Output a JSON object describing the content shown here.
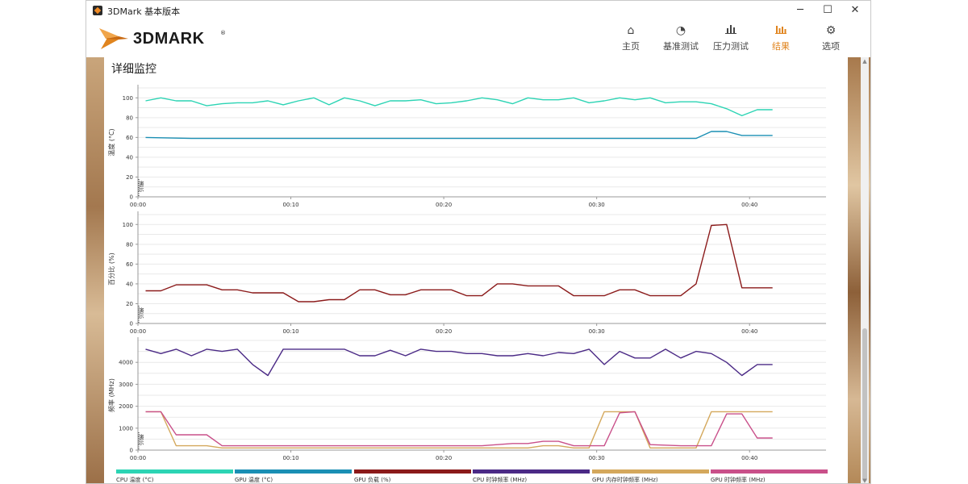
{
  "window": {
    "title": "3DMark 基本版本",
    "controls": {
      "minimize": "─",
      "maximize": "☐",
      "close": "✕"
    }
  },
  "header": {
    "logo_text": "3DMARK",
    "logo_mark": "®",
    "nav": [
      {
        "label": "主页",
        "icon": "home-icon",
        "glyph": "⌂",
        "active": false
      },
      {
        "label": "基准测试",
        "icon": "gauge-icon",
        "glyph": "◔",
        "active": false
      },
      {
        "label": "压力测试",
        "icon": "bar-chart-icon",
        "glyph": "▮",
        "active": false
      },
      {
        "label": "结果",
        "icon": "results-icon",
        "glyph": "▮",
        "active": true
      },
      {
        "label": "选项",
        "icon": "gear-icon",
        "glyph": "⚙",
        "active": false
      }
    ]
  },
  "monitor": {
    "title": "详细监控",
    "marker_label": "演示"
  },
  "colors": {
    "cpu_temp": "#2cd4b4",
    "gpu_temp": "#1a8fb4",
    "gpu_load": "#8b1a1a",
    "cpu_clock": "#4b2a86",
    "gpu_mem_clock": "#d4a85c",
    "gpu_clock": "#c9508a",
    "accent": "#e0841e"
  },
  "chart_data": [
    {
      "type": "line",
      "ylabel": "温度 (°C)",
      "ylim": [
        0,
        110
      ],
      "yticks": [
        0,
        20,
        40,
        60,
        80,
        100
      ],
      "xlim": [
        0,
        45
      ],
      "xticks": [
        "00:00",
        "00:10",
        "00:20",
        "00:30",
        "00:40"
      ],
      "grid": true,
      "series": [
        {
          "name": "CPU 温度 (°C)",
          "color": "#2cd4b4",
          "x": [
            0.5,
            1.5,
            2.5,
            3.5,
            4.5,
            5.5,
            6.5,
            7.5,
            8.5,
            9.5,
            10.5,
            11.5,
            12.5,
            13.5,
            14.5,
            15.5,
            16.5,
            17.5,
            18.5,
            19.5,
            20.5,
            21.5,
            22.5,
            23.5,
            24.5,
            25.5,
            26.5,
            27.5,
            28.5,
            29.5,
            30.5,
            31.5,
            32.5,
            33.5,
            34.5,
            35.5,
            36.5,
            37.5,
            38.5,
            39.5,
            40.5,
            41.5
          ],
          "y": [
            97,
            100,
            97,
            97,
            92,
            94,
            95,
            95,
            97,
            93,
            97,
            100,
            93,
            100,
            97,
            92,
            97,
            97,
            98,
            94,
            95,
            97,
            100,
            98,
            94,
            100,
            98,
            98,
            100,
            95,
            97,
            100,
            98,
            100,
            95,
            96,
            96,
            94,
            89,
            82,
            88,
            88
          ]
        },
        {
          "name": "GPU 温度 (°C)",
          "color": "#1a8fb4",
          "x": [
            0.5,
            3.5,
            5.5,
            9.5,
            14.5,
            19.5,
            24.5,
            29.5,
            30.5,
            33.5,
            36.5,
            37.5,
            38.5,
            39.5,
            41.5
          ],
          "y": [
            60,
            59,
            59,
            59,
            59,
            59,
            59,
            59,
            59,
            59,
            59,
            66,
            66,
            62,
            62
          ]
        }
      ]
    },
    {
      "type": "line",
      "ylabel": "百分比 (%)",
      "ylim": [
        0,
        110
      ],
      "yticks": [
        0,
        20,
        40,
        60,
        80,
        100
      ],
      "xlim": [
        0,
        45
      ],
      "xticks": [
        "00:00",
        "00:10",
        "00:20",
        "00:30",
        "00:40"
      ],
      "grid": true,
      "series": [
        {
          "name": "GPU 负载 (%)",
          "color": "#8b1a1a",
          "x": [
            0.5,
            1.5,
            2.5,
            3.5,
            4.5,
            5.5,
            6.5,
            7.5,
            8.5,
            9.5,
            10.5,
            11.5,
            12.5,
            13.5,
            14.5,
            15.5,
            16.5,
            17.5,
            18.5,
            19.5,
            20.5,
            21.5,
            22.5,
            23.5,
            24.5,
            25.5,
            26.5,
            27.5,
            28.5,
            29.5,
            30.5,
            31.5,
            32.5,
            33.5,
            34.5,
            35.5,
            36.5,
            37.5,
            38.5,
            39.5,
            40.5,
            41.5
          ],
          "y": [
            33,
            33,
            39,
            39,
            39,
            34,
            34,
            31,
            31,
            31,
            22,
            22,
            24,
            24,
            34,
            34,
            29,
            29,
            34,
            34,
            34,
            28,
            28,
            40,
            40,
            38,
            38,
            38,
            28,
            28,
            28,
            34,
            34,
            28,
            28,
            28,
            40,
            99,
            100,
            36,
            36,
            36
          ]
        }
      ]
    },
    {
      "type": "line",
      "ylabel": "频率 (MHz)",
      "ylim": [
        0,
        5000
      ],
      "yticks": [
        0,
        1000,
        2000,
        3000,
        4000
      ],
      "xlim": [
        0,
        45
      ],
      "xticks": [
        "00:00",
        "00:10",
        "00:20",
        "00:30",
        "00:40"
      ],
      "grid": true,
      "series": [
        {
          "name": "CPU 时钟频率 (MHz)",
          "color": "#4b2a86",
          "x": [
            0.5,
            1.5,
            2.5,
            3.5,
            4.5,
            5.5,
            6.5,
            7.5,
            8.5,
            9.5,
            10.5,
            11.5,
            12.5,
            13.5,
            14.5,
            15.5,
            16.5,
            17.5,
            18.5,
            19.5,
            20.5,
            21.5,
            22.5,
            23.5,
            24.5,
            25.5,
            26.5,
            27.5,
            28.5,
            29.5,
            30.5,
            31.5,
            32.5,
            33.5,
            34.5,
            35.5,
            36.5,
            37.5,
            38.5,
            39.5,
            40.5,
            41.5
          ],
          "y": [
            4600,
            4400,
            4600,
            4300,
            4600,
            4500,
            4600,
            3900,
            3400,
            4600,
            4600,
            4600,
            4600,
            4600,
            4300,
            4300,
            4550,
            4300,
            4600,
            4500,
            4500,
            4400,
            4400,
            4300,
            4300,
            4400,
            4300,
            4450,
            4400,
            4600,
            3900,
            4500,
            4200,
            4200,
            4600,
            4200,
            4500,
            4400,
            4000,
            3400,
            3900,
            3900
          ]
        },
        {
          "name": "GPU 内存时钟频率 (MHz)",
          "color": "#d4a85c",
          "x": [
            0.5,
            1.5,
            2.5,
            3.5,
            4.5,
            5.5,
            10.5,
            15.5,
            20.5,
            25.5,
            26.5,
            27.5,
            28.5,
            29.5,
            30.5,
            31.5,
            32.5,
            33.5,
            35.5,
            36.5,
            37.5,
            38.5,
            39.5,
            40.5,
            41.5
          ],
          "y": [
            1750,
            1750,
            200,
            200,
            200,
            100,
            100,
            100,
            100,
            100,
            200,
            200,
            100,
            100,
            1750,
            1750,
            1750,
            100,
            100,
            100,
            1750,
            1750,
            1750,
            1750,
            1750
          ]
        },
        {
          "name": "GPU 时钟频率 (MHz)",
          "color": "#c9508a",
          "x": [
            0.5,
            1.5,
            2.5,
            3.5,
            4.5,
            5.5,
            10.5,
            15.5,
            20.5,
            22.5,
            24.5,
            25.5,
            26.5,
            27.5,
            28.5,
            29.5,
            30.5,
            31.5,
            32.5,
            33.5,
            35.5,
            36.5,
            37.5,
            38.5,
            39.5,
            40.5,
            41.5
          ],
          "y": [
            1750,
            1750,
            700,
            700,
            700,
            200,
            200,
            200,
            200,
            200,
            300,
            300,
            400,
            400,
            200,
            200,
            200,
            1700,
            1750,
            250,
            200,
            200,
            200,
            1650,
            1650,
            550,
            550
          ]
        }
      ]
    }
  ]
}
